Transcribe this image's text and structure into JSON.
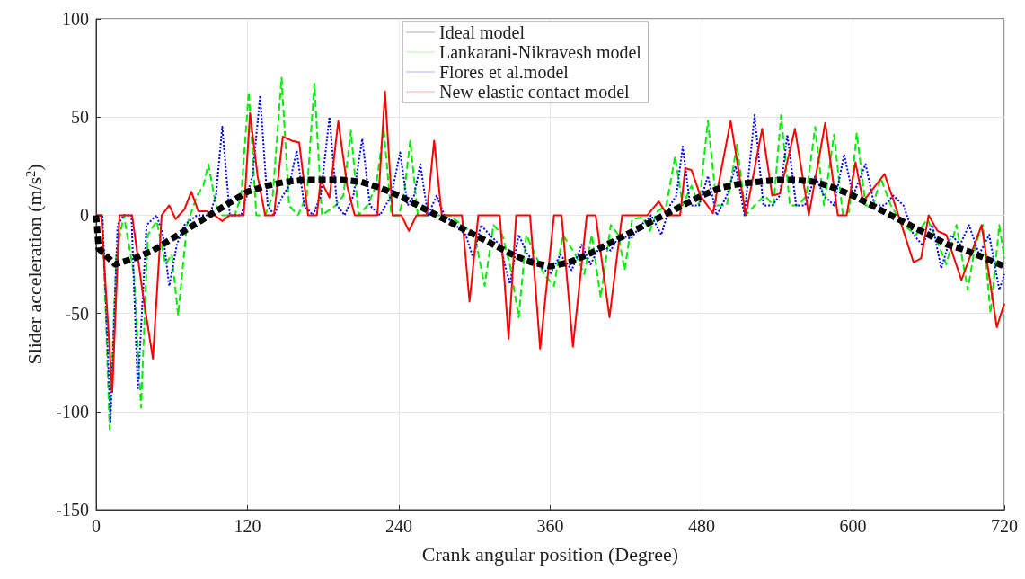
{
  "chart_data": {
    "type": "line",
    "xlabel": "Crank angular position (Degree)",
    "ylabel": "Slider acceleration (m/s$^{2}$)",
    "xlim": [
      0,
      720
    ],
    "xticks": [
      0,
      120,
      240,
      360,
      480,
      600,
      720
    ],
    "ylim": [
      -150,
      100
    ],
    "yticks": [
      -150,
      -100,
      -50,
      0,
      50,
      100
    ],
    "grid": true,
    "legend": "top",
    "marker": "none",
    "series": [
      {
        "name": "Ideal model",
        "color": "#000000",
        "line_style": "dashed",
        "x": [
          0,
          2,
          15,
          30,
          45,
          60,
          75,
          90,
          105,
          120,
          135,
          150,
          165,
          180,
          195,
          210,
          225,
          240,
          255,
          270,
          285,
          300,
          315,
          330,
          345,
          360,
          375,
          390,
          405,
          420,
          435,
          450,
          465,
          480,
          495,
          510,
          525,
          540,
          555,
          570,
          585,
          600,
          615,
          630,
          645,
          660,
          675,
          690,
          705,
          720
        ],
        "values": [
          0,
          -17,
          -25,
          -22,
          -18,
          -12,
          -6,
          0,
          6,
          12,
          15,
          17,
          18,
          18,
          18,
          17,
          14,
          10,
          5,
          0,
          -5,
          -10,
          -15,
          -20,
          -24,
          -26,
          -24,
          -20,
          -15,
          -10,
          -5,
          0,
          5,
          10,
          14,
          16,
          17,
          18,
          18,
          17,
          14,
          10,
          5,
          0,
          -5,
          -10,
          -15,
          -18,
          -22,
          -26
        ]
      },
      {
        "name": "Lankarani-Nikravesh model",
        "color": "#00ee00",
        "line_style": "dashed",
        "x": [
          0,
          5,
          10.7,
          16,
          22,
          30,
          35.6,
          41,
          48,
          55,
          60,
          65,
          72,
          80,
          85,
          89,
          95,
          100,
          110,
          115,
          121,
          127,
          134,
          140,
          147,
          153,
          160,
          167,
          173,
          179,
          190,
          196,
          202,
          208,
          215,
          222,
          228,
          234,
          240,
          244,
          249,
          255,
          262,
          270,
          280,
          290,
          300,
          308,
          315,
          322,
          328,
          335,
          341,
          348,
          355,
          363,
          370,
          380,
          387,
          393,
          400,
          408,
          414,
          419,
          425,
          433,
          439,
          445,
          452,
          459,
          465,
          472,
          478,
          485,
          492,
          500,
          508,
          515,
          522,
          530,
          537,
          543,
          550,
          557,
          563,
          570,
          577,
          585,
          592,
          597,
          603,
          610,
          616,
          622,
          630,
          640,
          650,
          659,
          666,
          674,
          682,
          691,
          697,
          703,
          709,
          716,
          720
        ],
        "values": [
          0,
          0,
          -109,
          -20,
          0,
          -30,
          -98,
          -10,
          -3,
          -25,
          -20,
          -51,
          -5,
          10,
          15,
          26,
          5,
          0,
          0,
          10,
          63,
          0,
          0,
          10,
          70,
          5,
          0,
          10,
          67,
          0,
          5,
          10,
          43,
          0,
          5,
          15,
          44,
          0,
          0,
          10,
          38,
          0,
          0,
          0,
          0,
          -5,
          -10,
          -36,
          -5,
          -10,
          -25,
          -52,
          -10,
          -20,
          -30,
          -36,
          -10,
          -20,
          -30,
          -10,
          -42,
          -5,
          -10,
          -28,
          -2,
          -1,
          -8,
          2,
          5,
          30,
          5,
          15,
          5,
          48,
          5,
          5,
          36,
          0,
          5,
          10,
          5,
          51,
          5,
          5,
          10,
          45,
          5,
          41,
          0,
          2,
          42,
          5,
          5,
          19,
          5,
          -5,
          -10,
          -2,
          -12,
          -25,
          -5,
          -38,
          -15,
          -5,
          -50,
          -5,
          -22
        ]
      },
      {
        "name": "Flores et al.model",
        "color": "#0000ff",
        "line_style": "dotted",
        "x": [
          0,
          5,
          11.4,
          17,
          22,
          28,
          33,
          40,
          48,
          53,
          58,
          64,
          70,
          80,
          90,
          95,
          100,
          106,
          115,
          124,
          130,
          136,
          141,
          148,
          153,
          159,
          165,
          172,
          178,
          185,
          191,
          197,
          204,
          211,
          217,
          225,
          234,
          241,
          247,
          252,
          257,
          263,
          270,
          276,
          285,
          293,
          299,
          305,
          312,
          320,
          328,
          335,
          342,
          350,
          360,
          368,
          377,
          385,
          392,
          400,
          408,
          415,
          424,
          432,
          440,
          448,
          455,
          460,
          465,
          471,
          478,
          485,
          492,
          500,
          507,
          514,
          522,
          529,
          536,
          542,
          548,
          555,
          562,
          570,
          577,
          585,
          593,
          600,
          610,
          617,
          625,
          632,
          640,
          648,
          655,
          663,
          670,
          678,
          685,
          692,
          700,
          708,
          716,
          720
        ],
        "values": [
          0,
          0,
          -105,
          -5,
          0,
          0,
          -89,
          -5,
          0,
          -10,
          -36,
          -15,
          -5,
          0,
          0,
          10,
          45,
          0,
          0,
          20,
          61,
          5,
          0,
          10,
          15,
          33,
          5,
          0,
          10,
          50,
          5,
          0,
          10,
          39,
          5,
          0,
          10,
          32,
          5,
          10,
          26,
          0,
          10,
          0,
          -5,
          -10,
          -22,
          -5,
          -10,
          -15,
          -35,
          -10,
          -20,
          -25,
          -30,
          -20,
          -28,
          -15,
          -25,
          -15,
          -18,
          -10,
          -12,
          -5,
          0,
          -10,
          5,
          10,
          35,
          5,
          5,
          20,
          0,
          10,
          25,
          0,
          51,
          5,
          5,
          10,
          41,
          5,
          5,
          20,
          10,
          5,
          31,
          10,
          26,
          5,
          5,
          10,
          5,
          -10,
          -15,
          -5,
          -27,
          -10,
          -15,
          -5,
          -20,
          -10,
          -38,
          -30
        ]
      },
      {
        "name": "New elastic contact model",
        "color": "#ff0000",
        "line_style": "solid",
        "x": [
          0,
          4,
          12.8,
          18.5,
          28.5,
          37,
          45,
          52,
          58,
          63,
          70,
          75.5,
          81,
          88,
          94,
          100,
          106,
          117,
          122,
          128,
          134,
          141,
          148,
          155,
          161,
          168,
          175,
          178,
          185,
          192,
          199,
          205,
          223,
          229,
          235,
          242,
          248,
          254,
          262,
          268,
          274,
          290,
          296,
          303,
          320,
          327,
          333,
          344,
          352,
          363,
          369,
          378,
          389,
          396,
          407,
          417,
          437,
          446,
          453,
          463,
          467,
          472,
          479,
          489,
          503,
          515,
          528,
          536,
          542,
          554,
          565,
          578,
          588,
          595,
          602,
          608,
          625,
          634,
          648,
          654,
          660,
          667,
          674,
          686,
          702,
          714,
          720
        ],
        "values": [
          0,
          0,
          -90,
          0,
          0,
          -40,
          -73,
          0,
          5,
          -2,
          3,
          12,
          2,
          2,
          0,
          -3,
          0,
          0,
          52,
          20,
          0,
          0,
          40,
          38,
          37,
          0,
          0,
          18,
          9,
          48,
          15,
          0,
          0,
          63,
          0,
          0,
          -8,
          0,
          0,
          38,
          0,
          0,
          -44,
          0,
          0,
          -63,
          0,
          0,
          -68,
          0,
          0,
          -67,
          0,
          0,
          -52,
          0,
          0,
          7,
          0,
          0,
          24,
          23,
          10,
          1,
          48,
          0,
          44,
          10,
          11,
          44,
          0,
          47,
          0,
          0,
          27,
          7,
          21,
          4,
          -24,
          -22,
          0,
          -8,
          -10,
          -33,
          -5,
          -57,
          -45
        ]
      }
    ]
  }
}
